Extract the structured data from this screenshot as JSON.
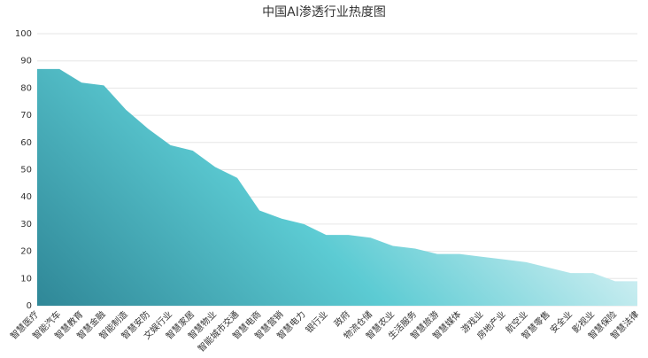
{
  "chart_data": {
    "type": "area",
    "title": "中国AI渗透行业热度图",
    "categories": [
      "智慧医疗",
      "智能汽车",
      "智慧教育",
      "智慧金融",
      "智能制造",
      "智慧安防",
      "文娱行业",
      "智慧家居",
      "智慧物业",
      "智能城市交通",
      "智慧电商",
      "智慧营销",
      "智慧电力",
      "银行业",
      "政府",
      "物流仓储",
      "智慧农业",
      "生活服务",
      "智慧旅游",
      "智慧媒体",
      "游戏业",
      "房地产业",
      "航空业",
      "智慧零售",
      "安全业",
      "影视业",
      "智慧保险",
      "智慧法律"
    ],
    "values": [
      87,
      87,
      82,
      81,
      72,
      65,
      59,
      57,
      51,
      47,
      35,
      32,
      30,
      26,
      26,
      25,
      22,
      21,
      19,
      19,
      18,
      17,
      16,
      14,
      12,
      12,
      9,
      9
    ],
    "colors": [
      "#2f8797",
      "#5ccbd3",
      "#e6f6f8"
    ],
    "ylim": [
      0,
      100
    ],
    "yticks": [
      0,
      10,
      20,
      30,
      40,
      50,
      60,
      70,
      80,
      90,
      100
    ],
    "grid": true
  }
}
